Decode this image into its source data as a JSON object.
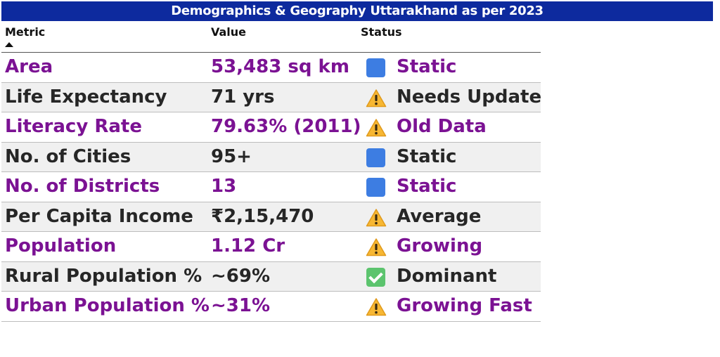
{
  "title": "Demographics & Geography Uttarakhand as per 2023",
  "columns": {
    "metric": "Metric",
    "value": "Value",
    "status": "Status"
  },
  "rows": [
    {
      "metric": "Area",
      "value": "53,483 sq km",
      "status": "Static",
      "icon": "blue-square-icon"
    },
    {
      "metric": "Life Expectancy",
      "value": "71 yrs",
      "status": "Needs Update",
      "icon": "warning-icon"
    },
    {
      "metric": "Literacy Rate",
      "value": "79.63% (2011)",
      "status": "Old Data",
      "icon": "warning-icon"
    },
    {
      "metric": "No. of Cities",
      "value": "95+",
      "status": "Static",
      "icon": "blue-square-icon"
    },
    {
      "metric": "No. of Districts",
      "value": "13",
      "status": "Static",
      "icon": "blue-square-icon"
    },
    {
      "metric": "Per Capita Income",
      "value": "₹2,15,470",
      "status": "Average",
      "icon": "warning-icon"
    },
    {
      "metric": "Population",
      "value": "1.12 Cr",
      "status": "Growing",
      "icon": "warning-icon"
    },
    {
      "metric": "Rural Population %",
      "value": "~69%",
      "status": "Dominant",
      "icon": "check-icon"
    },
    {
      "metric": "Urban Population %",
      "value": "~31%",
      "status": "Growing Fast",
      "icon": "warning-icon"
    }
  ],
  "colors": {
    "title_bg": "#0d2a9e",
    "purple_text": "#7b1293",
    "dark_text": "#262626",
    "row_alt_bg": "#f0f0f0",
    "static_icon": "#3d7de2",
    "warning_icon": "#f7b733",
    "check_icon": "#5cc46e"
  }
}
